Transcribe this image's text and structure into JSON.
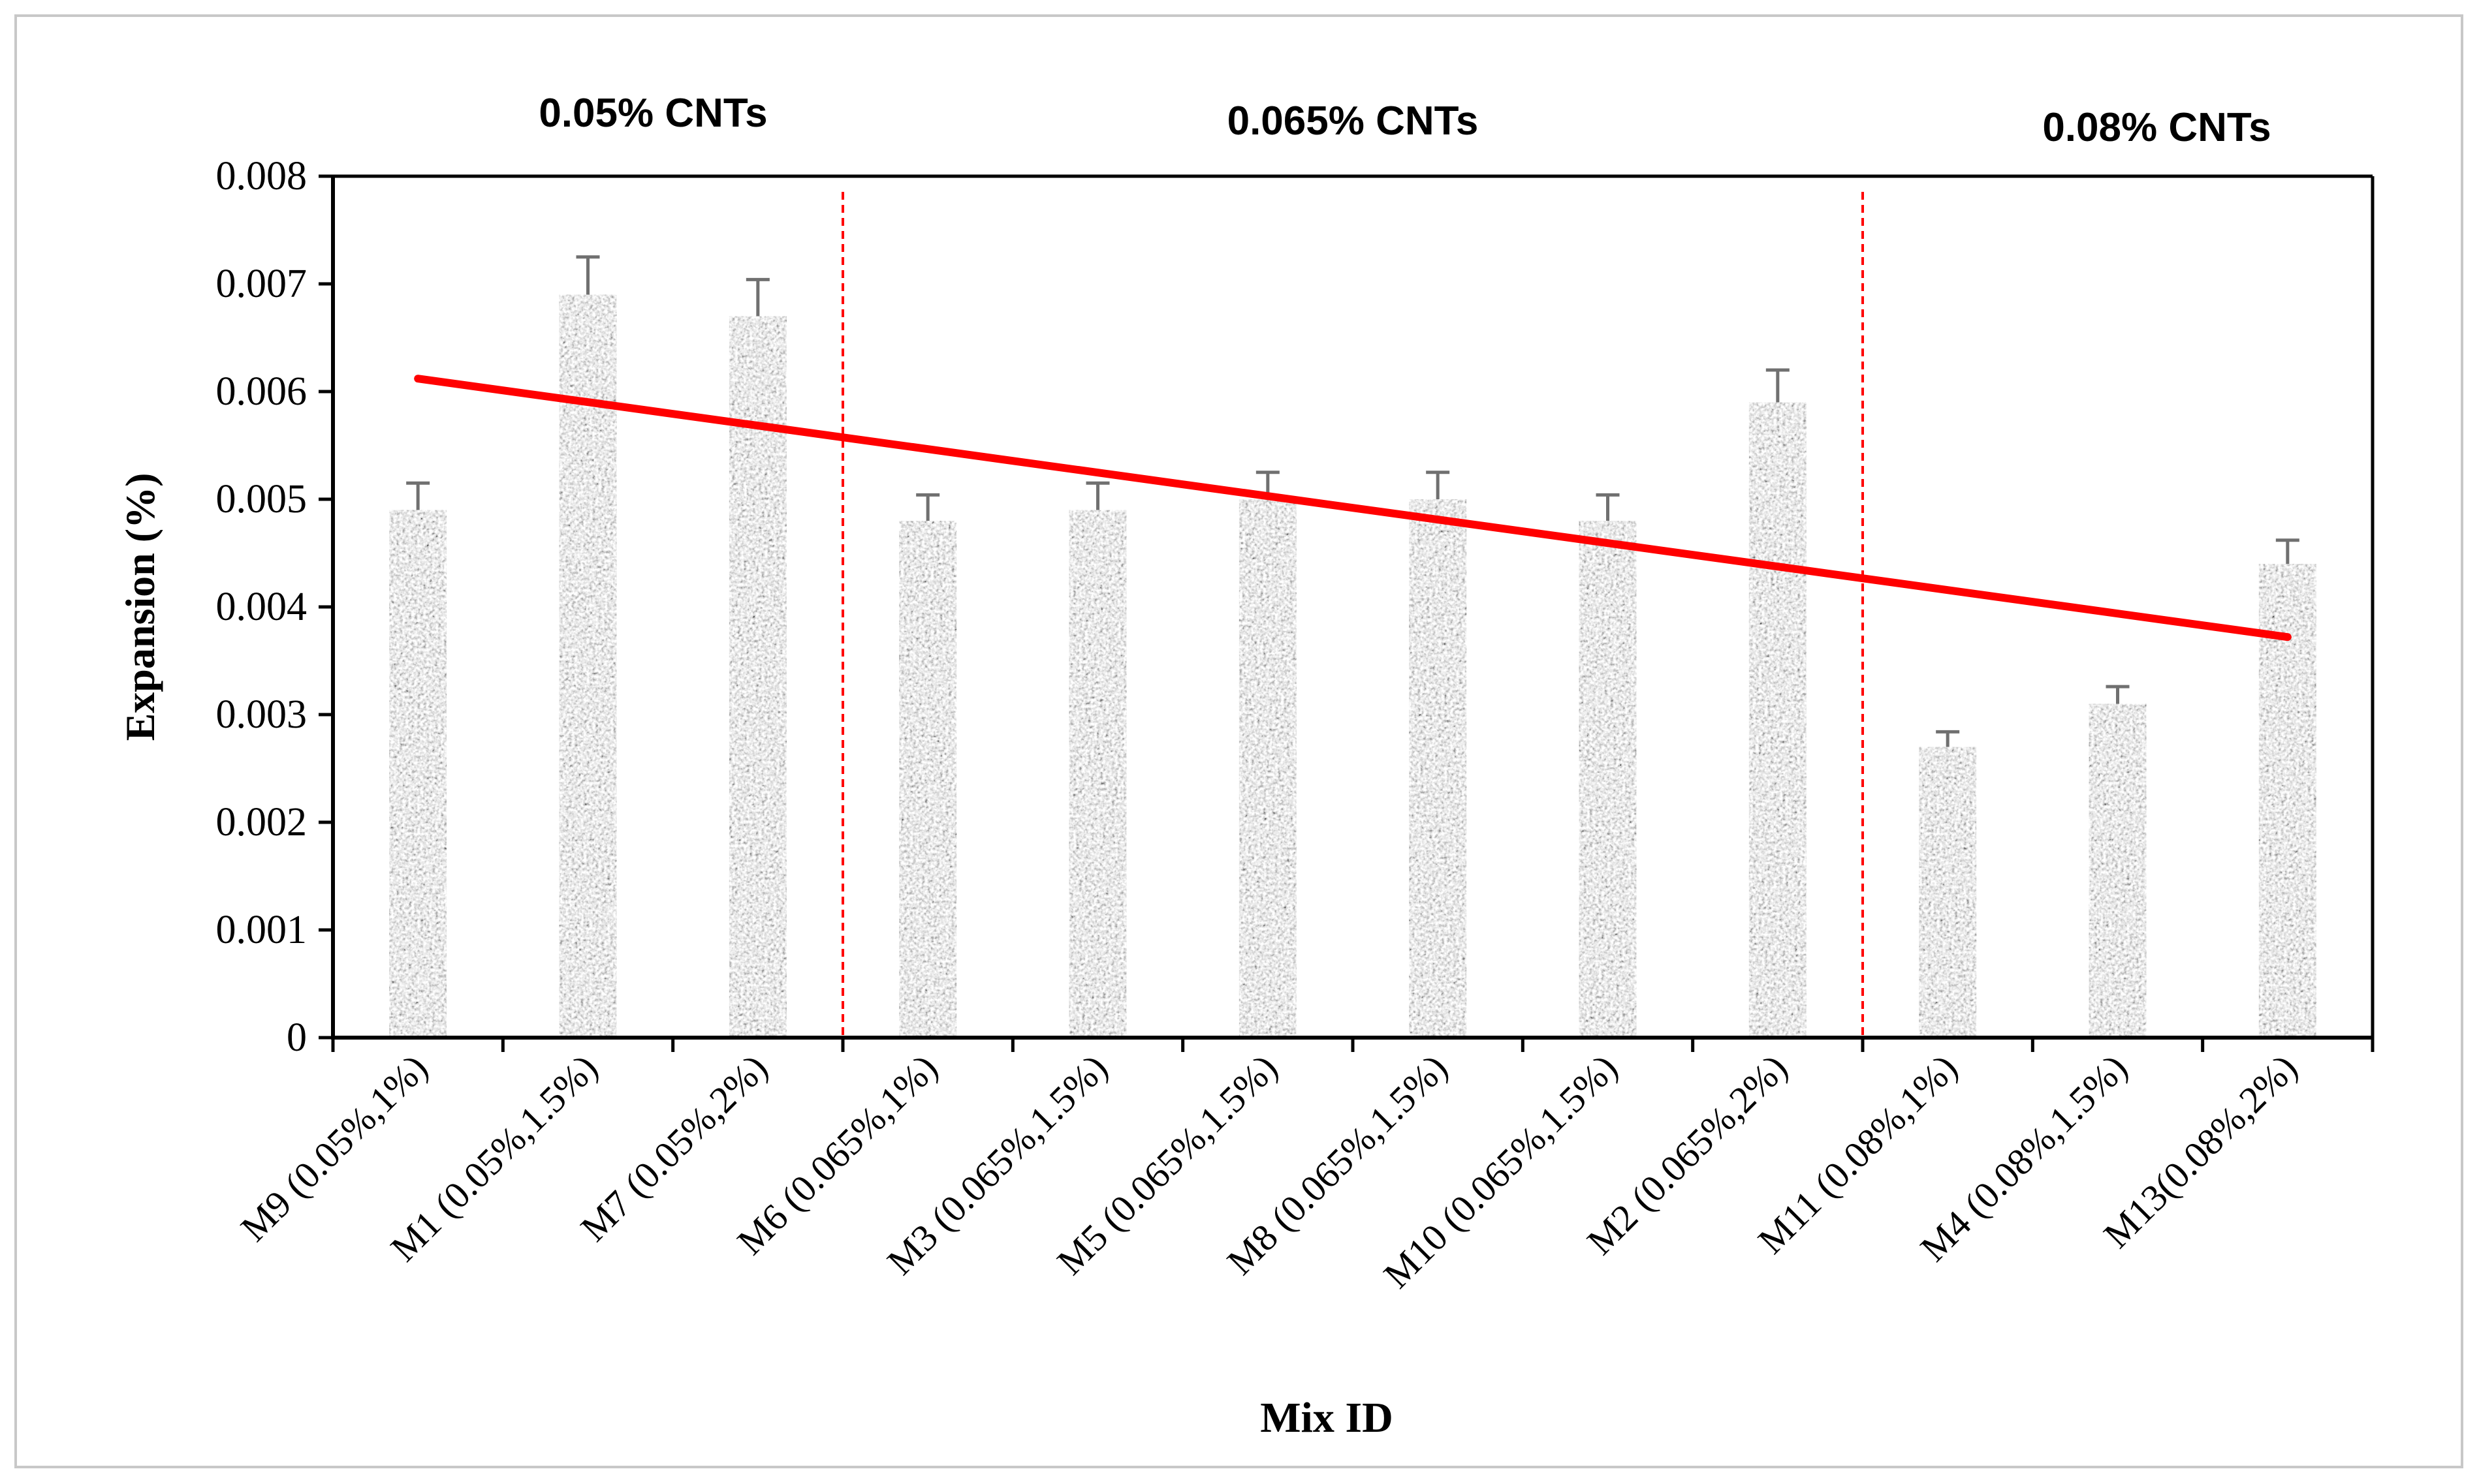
{
  "chart_data": {
    "type": "bar",
    "title": "",
    "xlabel": "Mix ID",
    "ylabel": "Expansion (%)",
    "ylim": [
      0,
      0.008
    ],
    "yticks": [
      "0",
      "0.001",
      "0.002",
      "0.003",
      "0.004",
      "0.005",
      "0.006",
      "0.007",
      "0.008"
    ],
    "categories": [
      "M9 (0.05%,1%)",
      "M1 (0.05%,1.5%)",
      "M7 (0.05%,2%)",
      "M6 (0.065%,1%)",
      "M3 (0.065%,1.5%)",
      "M5 (0.065%,1.5%)",
      "M8 (0.065%,1.5%)",
      "M10 (0.065%,1.5%)",
      "M2 (0.065%,2%)",
      "M11 (0.08%,1%)",
      "M4 (0.08%,1.5%)",
      "M13(0.08%,2%)"
    ],
    "values": [
      0.0049,
      0.0069,
      0.0067,
      0.0048,
      0.0049,
      0.005,
      0.005,
      0.0048,
      0.0059,
      0.0027,
      0.0031,
      0.0044
    ],
    "error_plus": [
      0.00025,
      0.00035,
      0.00034,
      0.00024,
      0.00025,
      0.00025,
      0.00025,
      0.00024,
      0.0003,
      0.00014,
      0.00016,
      0.00022
    ],
    "trendline": {
      "start": 0.00612,
      "end": 0.00372,
      "color": "#ff0000"
    },
    "groups": [
      {
        "label": "0.05% CNTs",
        "first": 0,
        "last": 2
      },
      {
        "label": "0.065% CNTs",
        "first": 3,
        "last": 8
      },
      {
        "label": "0.08% CNTs",
        "first": 9,
        "last": 11
      }
    ],
    "group_dividers_after": [
      2,
      8
    ],
    "grid": false,
    "legend": "none",
    "colors": {
      "axis": "#000000",
      "bar": "#9a9a9a",
      "error_bar": "#707070",
      "divider": "#ff0000"
    }
  }
}
